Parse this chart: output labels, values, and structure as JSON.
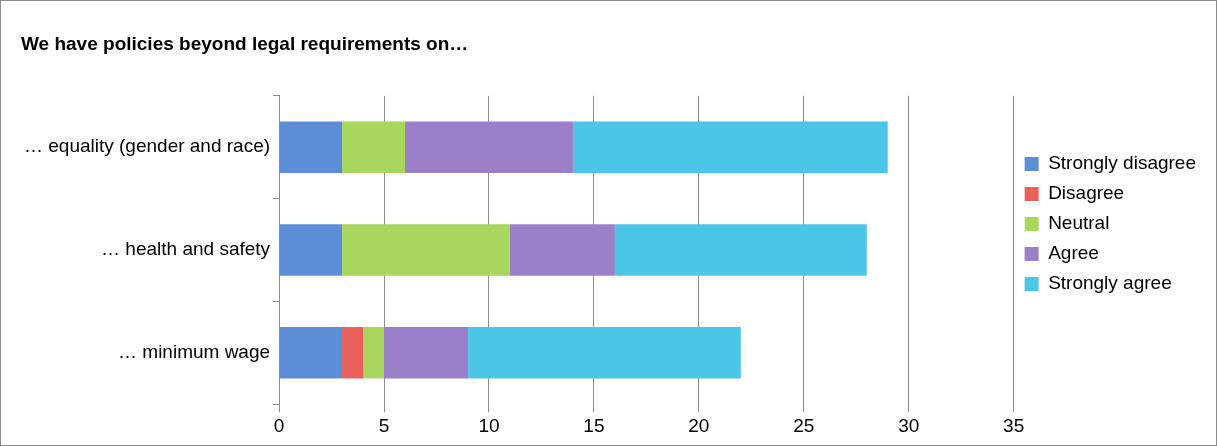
{
  "chart_data": {
    "type": "bar",
    "orientation": "horizontal",
    "stacked": true,
    "title": "We have policies beyond legal requirements on…",
    "categories": [
      "… equality (gender and race)",
      "… health and safety",
      "… minimum wage"
    ],
    "series": [
      {
        "name": "Strongly disagree",
        "color": "#5b8ed6",
        "values": [
          3,
          3,
          3
        ]
      },
      {
        "name": "Disagree",
        "color": "#e8605a",
        "values": [
          0,
          0,
          1
        ]
      },
      {
        "name": "Neutral",
        "color": "#a9d65c",
        "values": [
          3,
          8,
          1
        ]
      },
      {
        "name": "Agree",
        "color": "#9b7fc8",
        "values": [
          8,
          5,
          4
        ]
      },
      {
        "name": "Strongly agree",
        "color": "#4cc6e6",
        "values": [
          15,
          12,
          13
        ]
      }
    ],
    "xlim": [
      0,
      35
    ],
    "xticks": [
      0,
      5,
      10,
      15,
      20,
      25,
      30,
      35
    ],
    "grid": "x",
    "legend": "right"
  }
}
